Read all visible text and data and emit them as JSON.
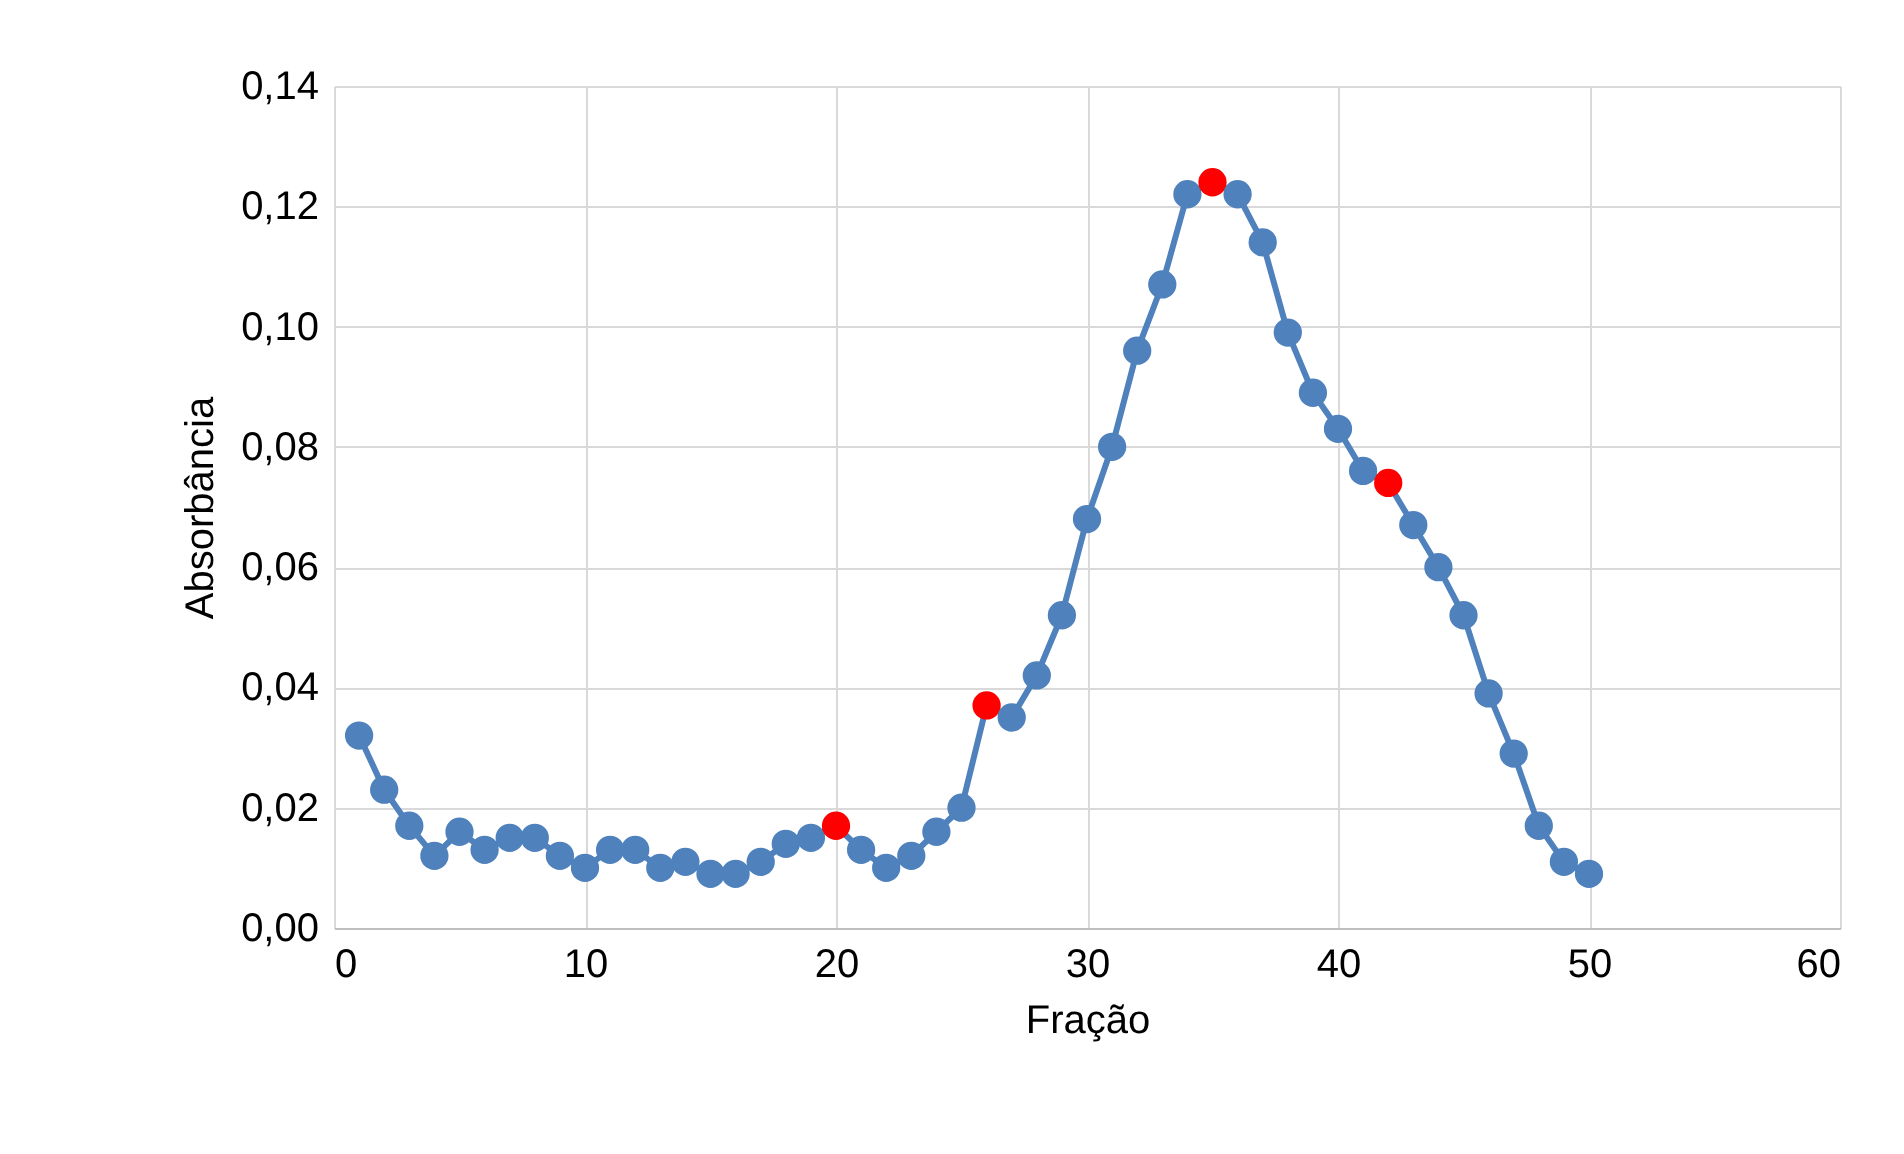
{
  "chart_data": {
    "type": "line",
    "xlabel": "Fração",
    "ylabel": "Absorbância",
    "x": [
      1,
      2,
      3,
      4,
      5,
      6,
      7,
      8,
      9,
      10,
      11,
      12,
      13,
      14,
      15,
      16,
      17,
      18,
      19,
      20,
      21,
      22,
      23,
      24,
      25,
      26,
      27,
      28,
      29,
      30,
      31,
      32,
      33,
      34,
      35,
      36,
      37,
      38,
      39,
      40,
      41,
      42,
      43,
      44,
      45,
      46,
      47,
      48,
      49,
      50
    ],
    "series": [
      {
        "color": "#4f81bd",
        "values": [
          0.032,
          0.023,
          0.017,
          0.012,
          0.016,
          0.013,
          0.015,
          0.015,
          0.012,
          0.01,
          0.013,
          0.013,
          0.01,
          0.011,
          0.009,
          0.009,
          0.011,
          0.014,
          0.015,
          0.017,
          0.013,
          0.01,
          0.012,
          0.016,
          0.02,
          0.037,
          0.035,
          0.042,
          0.052,
          0.068,
          0.08,
          0.096,
          0.107,
          0.122,
          0.124,
          0.122,
          0.114,
          0.099,
          0.089,
          0.083,
          0.076,
          0.074,
          0.067,
          0.06,
          0.052,
          0.039,
          0.029,
          0.017,
          0.011,
          0.009
        ],
        "colors": [
          "#4f81bd",
          "#4f81bd",
          "#4f81bd",
          "#4f81bd",
          "#4f81bd",
          "#4f81bd",
          "#4f81bd",
          "#4f81bd",
          "#4f81bd",
          "#4f81bd",
          "#4f81bd",
          "#4f81bd",
          "#4f81bd",
          "#4f81bd",
          "#4f81bd",
          "#4f81bd",
          "#4f81bd",
          "#4f81bd",
          "#4f81bd",
          "#ff0000",
          "#4f81bd",
          "#4f81bd",
          "#4f81bd",
          "#4f81bd",
          "#4f81bd",
          "#ff0000",
          "#4f81bd",
          "#4f81bd",
          "#4f81bd",
          "#4f81bd",
          "#4f81bd",
          "#4f81bd",
          "#4f81bd",
          "#4f81bd",
          "#ff0000",
          "#4f81bd",
          "#4f81bd",
          "#4f81bd",
          "#4f81bd",
          "#4f81bd",
          "#4f81bd",
          "#ff0000",
          "#4f81bd",
          "#4f81bd",
          "#4f81bd",
          "#4f81bd",
          "#4f81bd",
          "#4f81bd",
          "#4f81bd",
          "#4f81bd"
        ]
      }
    ],
    "xlim": [
      0,
      60
    ],
    "xticks": [
      0,
      10,
      20,
      30,
      40,
      50,
      60
    ],
    "ylim": [
      0,
      0.14
    ],
    "yticks": [
      {
        "value": 0,
        "label": "0,00"
      },
      {
        "value": 0.02,
        "label": "0,02"
      },
      {
        "value": 0.04,
        "label": "0,04"
      },
      {
        "value": 0.06,
        "label": "0,06"
      },
      {
        "value": 0.08,
        "label": "0,08"
      },
      {
        "value": 0.1,
        "label": "0,10"
      },
      {
        "value": 0.12,
        "label": "0,12"
      },
      {
        "value": 0.14,
        "label": "0,14"
      }
    ],
    "grid": true,
    "marker": "circle",
    "line_style": "solid"
  }
}
